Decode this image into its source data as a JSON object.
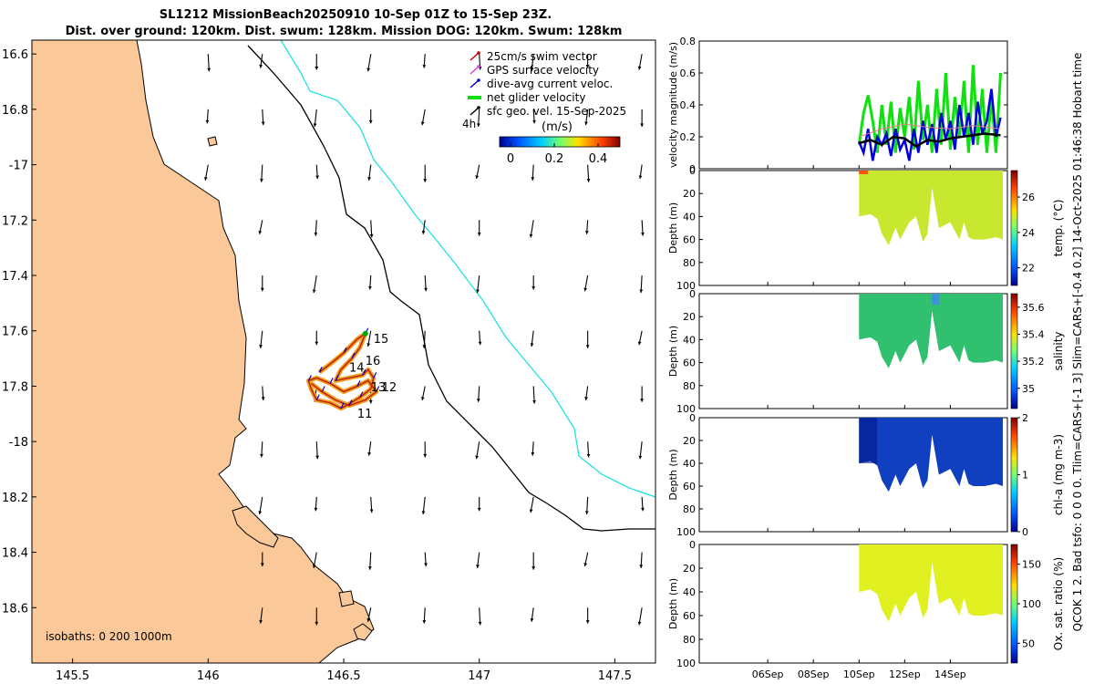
{
  "header": {
    "title_line1": "SL1212 MissionBeach20250910 10-Sep 01Z to 15-Sep 23Z.",
    "title_line2": "Dist. over ground: 120km. Dist. swum: 128km. Mission DOG: 120km. Swum: 128km"
  },
  "side_note": "QCOK 1 2. Bad tsfo: 0 0 0 0. Tlim=CARS+[-1 3] Slim=CARS+[-0.4 0.2] 14-Oct-2025 01:46:38 Hobart time",
  "colors": {
    "land": "#fbc999",
    "isobath_200": "#000000",
    "isobath_1000": "#22e0e0",
    "track": "#f0a020"
  },
  "chart_data": [
    {
      "type": "map",
      "xlim": [
        145.35,
        147.65
      ],
      "ylim": [
        -18.8,
        -16.55
      ],
      "x_ticks": [
        145.5,
        146,
        146.5,
        147,
        147.5
      ],
      "x_tick_labels": [
        "145.5",
        "146",
        "146.5",
        "147",
        "147.5"
      ],
      "y_ticks": [
        -16.6,
        -16.8,
        -17,
        -17.2,
        -17.4,
        -17.6,
        -17.8,
        -18,
        -18.2,
        -18.4,
        -18.6
      ],
      "y_tick_labels": [
        "16.6",
        "16.8",
        "-17",
        "17.2",
        "17.4",
        "17.6",
        "17.8",
        "-18",
        "18.2",
        "18.4",
        "18.6"
      ],
      "isobaths_label": "isobaths: 0   200  1000m",
      "legend": {
        "items": [
          "25cm/s swim vector",
          "GPS surface velocity",
          "dive-avg current veloc.",
          "net glider velocity",
          "sfc geo. vel. 15-Sep-2025"
        ],
        "item_colors": [
          "#c00000",
          "#e040e0",
          "#0000dd",
          "#10e010",
          "#000000"
        ],
        "scale_label": "4h",
        "colorbar_title": "(m/s)",
        "colorbar_ticks": [
          "0",
          "0.2",
          "0.4"
        ],
        "colorbar_range": [
          -0.05,
          0.5
        ]
      },
      "day_labels": [
        "15",
        "16",
        "14",
        "13",
        "12",
        "11"
      ],
      "track_points": [
        [
          146.41,
          -17.75
        ],
        [
          146.45,
          -17.72
        ],
        [
          146.5,
          -17.68
        ],
        [
          146.55,
          -17.63
        ],
        [
          146.58,
          -17.61
        ],
        [
          146.56,
          -17.66
        ],
        [
          146.53,
          -17.7
        ],
        [
          146.49,
          -17.74
        ],
        [
          146.47,
          -17.78
        ],
        [
          146.52,
          -17.77
        ],
        [
          146.57,
          -17.76
        ],
        [
          146.59,
          -17.74
        ],
        [
          146.61,
          -17.77
        ],
        [
          146.6,
          -17.81
        ],
        [
          146.56,
          -17.84
        ],
        [
          146.51,
          -17.87
        ],
        [
          146.49,
          -17.88
        ],
        [
          146.45,
          -17.86
        ],
        [
          146.4,
          -17.85
        ],
        [
          146.38,
          -17.81
        ],
        [
          146.37,
          -17.78
        ],
        [
          146.4,
          -17.77
        ],
        [
          146.45,
          -17.79
        ],
        [
          146.5,
          -17.82
        ],
        [
          146.55,
          -17.8
        ],
        [
          146.59,
          -17.78
        ],
        [
          146.62,
          -17.82
        ],
        [
          146.58,
          -17.85
        ],
        [
          146.52,
          -17.87
        ],
        [
          146.47,
          -17.85
        ],
        [
          146.42,
          -17.82
        ],
        [
          146.38,
          -17.79
        ]
      ],
      "vector_grid": {
        "lon_start": 145.6,
        "lon_step": 0.2,
        "lat_start": -16.6,
        "lat_step": -0.2,
        "u": -0.004,
        "v": -0.07
      }
    },
    {
      "type": "line",
      "ylabel": "velocity magnitude (m/s)",
      "ylim": [
        0,
        0.8
      ],
      "y_ticks": [
        0,
        0.2,
        0.4,
        0.6,
        0.8
      ],
      "y_tick_labels": [
        "0",
        "0.2",
        "0.4",
        "0.6",
        "0.8"
      ],
      "xlim": [
        3,
        16.5
      ],
      "series": [
        {
          "name": "net glider velocity",
          "x": [
            10.0,
            10.2,
            10.4,
            10.6,
            10.8,
            11.0,
            11.2,
            11.4,
            11.6,
            11.8,
            12.0,
            12.2,
            12.4,
            12.6,
            12.8,
            13.0,
            13.2,
            13.4,
            13.6,
            13.8,
            14.0,
            14.2,
            14.4,
            14.6,
            14.8,
            15.0,
            15.2,
            15.4,
            15.6,
            15.8,
            16.0,
            16.2
          ],
          "values": [
            0.15,
            0.35,
            0.46,
            0.3,
            0.1,
            0.4,
            0.15,
            0.42,
            0.1,
            0.38,
            0.2,
            0.45,
            0.12,
            0.55,
            0.18,
            0.4,
            0.1,
            0.5,
            0.15,
            0.6,
            0.12,
            0.45,
            0.2,
            0.55,
            0.1,
            0.65,
            0.15,
            0.5,
            0.1,
            0.45,
            0.1,
            0.6
          ]
        },
        {
          "name": "dive-avg current veloc.",
          "x": [
            10.0,
            10.2,
            10.4,
            10.6,
            10.8,
            11.0,
            11.2,
            11.4,
            11.6,
            11.8,
            12.0,
            12.2,
            12.4,
            12.6,
            12.8,
            13.0,
            13.2,
            13.4,
            13.6,
            13.8,
            14.0,
            14.2,
            14.4,
            14.6,
            14.8,
            15.0,
            15.2,
            15.4,
            15.6,
            15.8,
            16.0,
            16.2
          ],
          "values": [
            0.17,
            0.1,
            0.25,
            0.05,
            0.2,
            0.15,
            0.22,
            0.08,
            0.25,
            0.12,
            0.18,
            0.05,
            0.25,
            0.1,
            0.3,
            0.15,
            0.28,
            0.1,
            0.35,
            0.18,
            0.3,
            0.12,
            0.4,
            0.2,
            0.35,
            0.15,
            0.42,
            0.22,
            0.3,
            0.5,
            0.2,
            0.32
          ]
        },
        {
          "name": "GPS surface velocity",
          "x": [
            10.0,
            11.0,
            12.0,
            13.0,
            14.0,
            15.0,
            16.2
          ],
          "values": [
            0.2,
            0.25,
            0.28,
            0.26,
            0.25,
            0.27,
            0.25
          ]
        },
        {
          "name": "sfc geo. vel.",
          "x": [
            10.0,
            10.5,
            11.0,
            11.5,
            12.0,
            12.5,
            13.0,
            13.5,
            14.0,
            14.5,
            15.0,
            15.5,
            16.2
          ],
          "values": [
            0.16,
            0.18,
            0.15,
            0.2,
            0.19,
            0.14,
            0.18,
            0.17,
            0.19,
            0.2,
            0.21,
            0.22,
            0.21
          ]
        }
      ]
    },
    {
      "type": "heatmap",
      "ylabel": "Depth (m)",
      "ylim": [
        100,
        0
      ],
      "y_ticks": [
        0,
        20,
        40,
        60,
        80,
        100
      ],
      "y_tick_labels": [
        "0",
        "20",
        "40",
        "60",
        "80",
        "100"
      ],
      "panels": [
        {
          "id": "temp",
          "cbar_label": "temp. (°C)",
          "cbar_ticks": [
            22,
            24,
            26
          ],
          "cbar_tick_labels": [
            "22",
            "24",
            "26"
          ],
          "crange": [
            21,
            27.5
          ],
          "value": 25.3
        },
        {
          "id": "salinity",
          "cbar_label": "salinity",
          "cbar_ticks": [
            35,
            35.2,
            35.4,
            35.6
          ],
          "cbar_tick_labels": [
            "35",
            "35.2",
            "35.4",
            "35.6"
          ],
          "crange": [
            34.85,
            35.7
          ],
          "value": 35.3
        },
        {
          "id": "chla",
          "cbar_label": "chl-a (mg m-3)",
          "cbar_ticks": [
            0,
            1,
            2
          ],
          "cbar_tick_labels": [
            "0",
            "1",
            "2"
          ],
          "crange": [
            0,
            2
          ],
          "value": 0.25
        },
        {
          "id": "oxy",
          "cbar_label": "Ox. sat. ratio (%)",
          "cbar_ticks": [
            50,
            100,
            150
          ],
          "cbar_tick_labels": [
            "50",
            "100",
            "150"
          ],
          "crange": [
            25,
            175
          ],
          "value": 120
        }
      ],
      "x_ticks": [
        6,
        8,
        10,
        12,
        14
      ],
      "x_tick_labels": [
        "06Sep",
        "08Sep",
        "10Sep",
        "12Sep",
        "14Sep"
      ],
      "depth_profile": {
        "x": [
          10.0,
          10.5,
          10.8,
          11.0,
          11.3,
          11.6,
          11.8,
          12.2,
          12.5,
          12.8,
          13.0,
          13.2,
          13.5,
          14.0,
          14.4,
          14.6,
          14.8,
          15.0,
          15.5,
          16.0,
          16.3
        ],
        "depth": [
          40,
          38,
          42,
          55,
          65,
          50,
          60,
          45,
          40,
          62,
          55,
          15,
          50,
          45,
          60,
          45,
          58,
          60,
          60,
          58,
          60
        ]
      }
    }
  ]
}
